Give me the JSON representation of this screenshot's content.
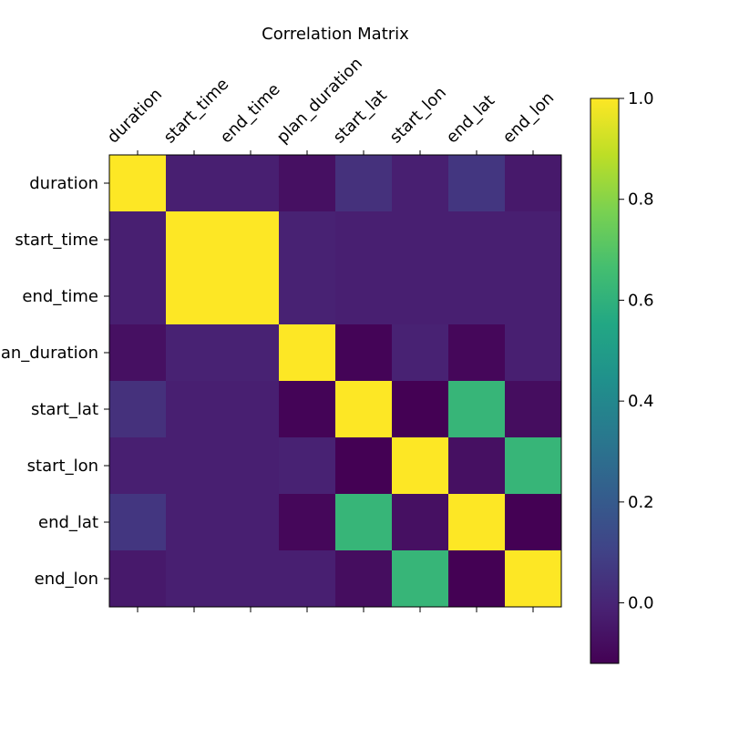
{
  "chart_data": {
    "type": "heatmap",
    "title": "Correlation Matrix",
    "x_labels": [
      "duration",
      "start_time",
      "end_time",
      "plan_duration",
      "start_lat",
      "start_lon",
      "end_lat",
      "end_lon"
    ],
    "y_labels": [
      "duration",
      "start_time",
      "end_time",
      "plan_duration",
      "start_lat",
      "start_lon",
      "end_lat",
      "end_lon"
    ],
    "matrix": [
      [
        1.0,
        -0.02,
        -0.02,
        -0.07,
        0.04,
        -0.02,
        0.06,
        -0.04
      ],
      [
        -0.02,
        1.0,
        1.0,
        -0.01,
        -0.02,
        -0.02,
        -0.02,
        -0.02
      ],
      [
        -0.02,
        1.0,
        1.0,
        -0.01,
        -0.02,
        -0.02,
        -0.02,
        -0.02
      ],
      [
        -0.07,
        -0.01,
        -0.01,
        1.0,
        -0.11,
        -0.01,
        -0.1,
        -0.02
      ],
      [
        0.04,
        -0.02,
        -0.02,
        -0.11,
        1.0,
        -0.12,
        0.62,
        -0.08
      ],
      [
        -0.02,
        -0.02,
        -0.02,
        -0.01,
        -0.12,
        1.0,
        -0.07,
        0.62
      ],
      [
        0.06,
        -0.02,
        -0.02,
        -0.1,
        0.62,
        -0.07,
        1.0,
        -0.12
      ],
      [
        -0.04,
        -0.02,
        -0.02,
        -0.02,
        -0.08,
        0.62,
        -0.12,
        1.0
      ]
    ],
    "vmin": -0.12,
    "vmax": 1.0,
    "colormap": "viridis",
    "colorbar": {
      "ticks": [
        0.0,
        0.2,
        0.4,
        0.6,
        0.8,
        1.0
      ],
      "tick_labels": [
        "0.0",
        "0.2",
        "0.4",
        "0.6",
        "0.8",
        "1.0"
      ],
      "placement": "right"
    },
    "grid": false
  }
}
